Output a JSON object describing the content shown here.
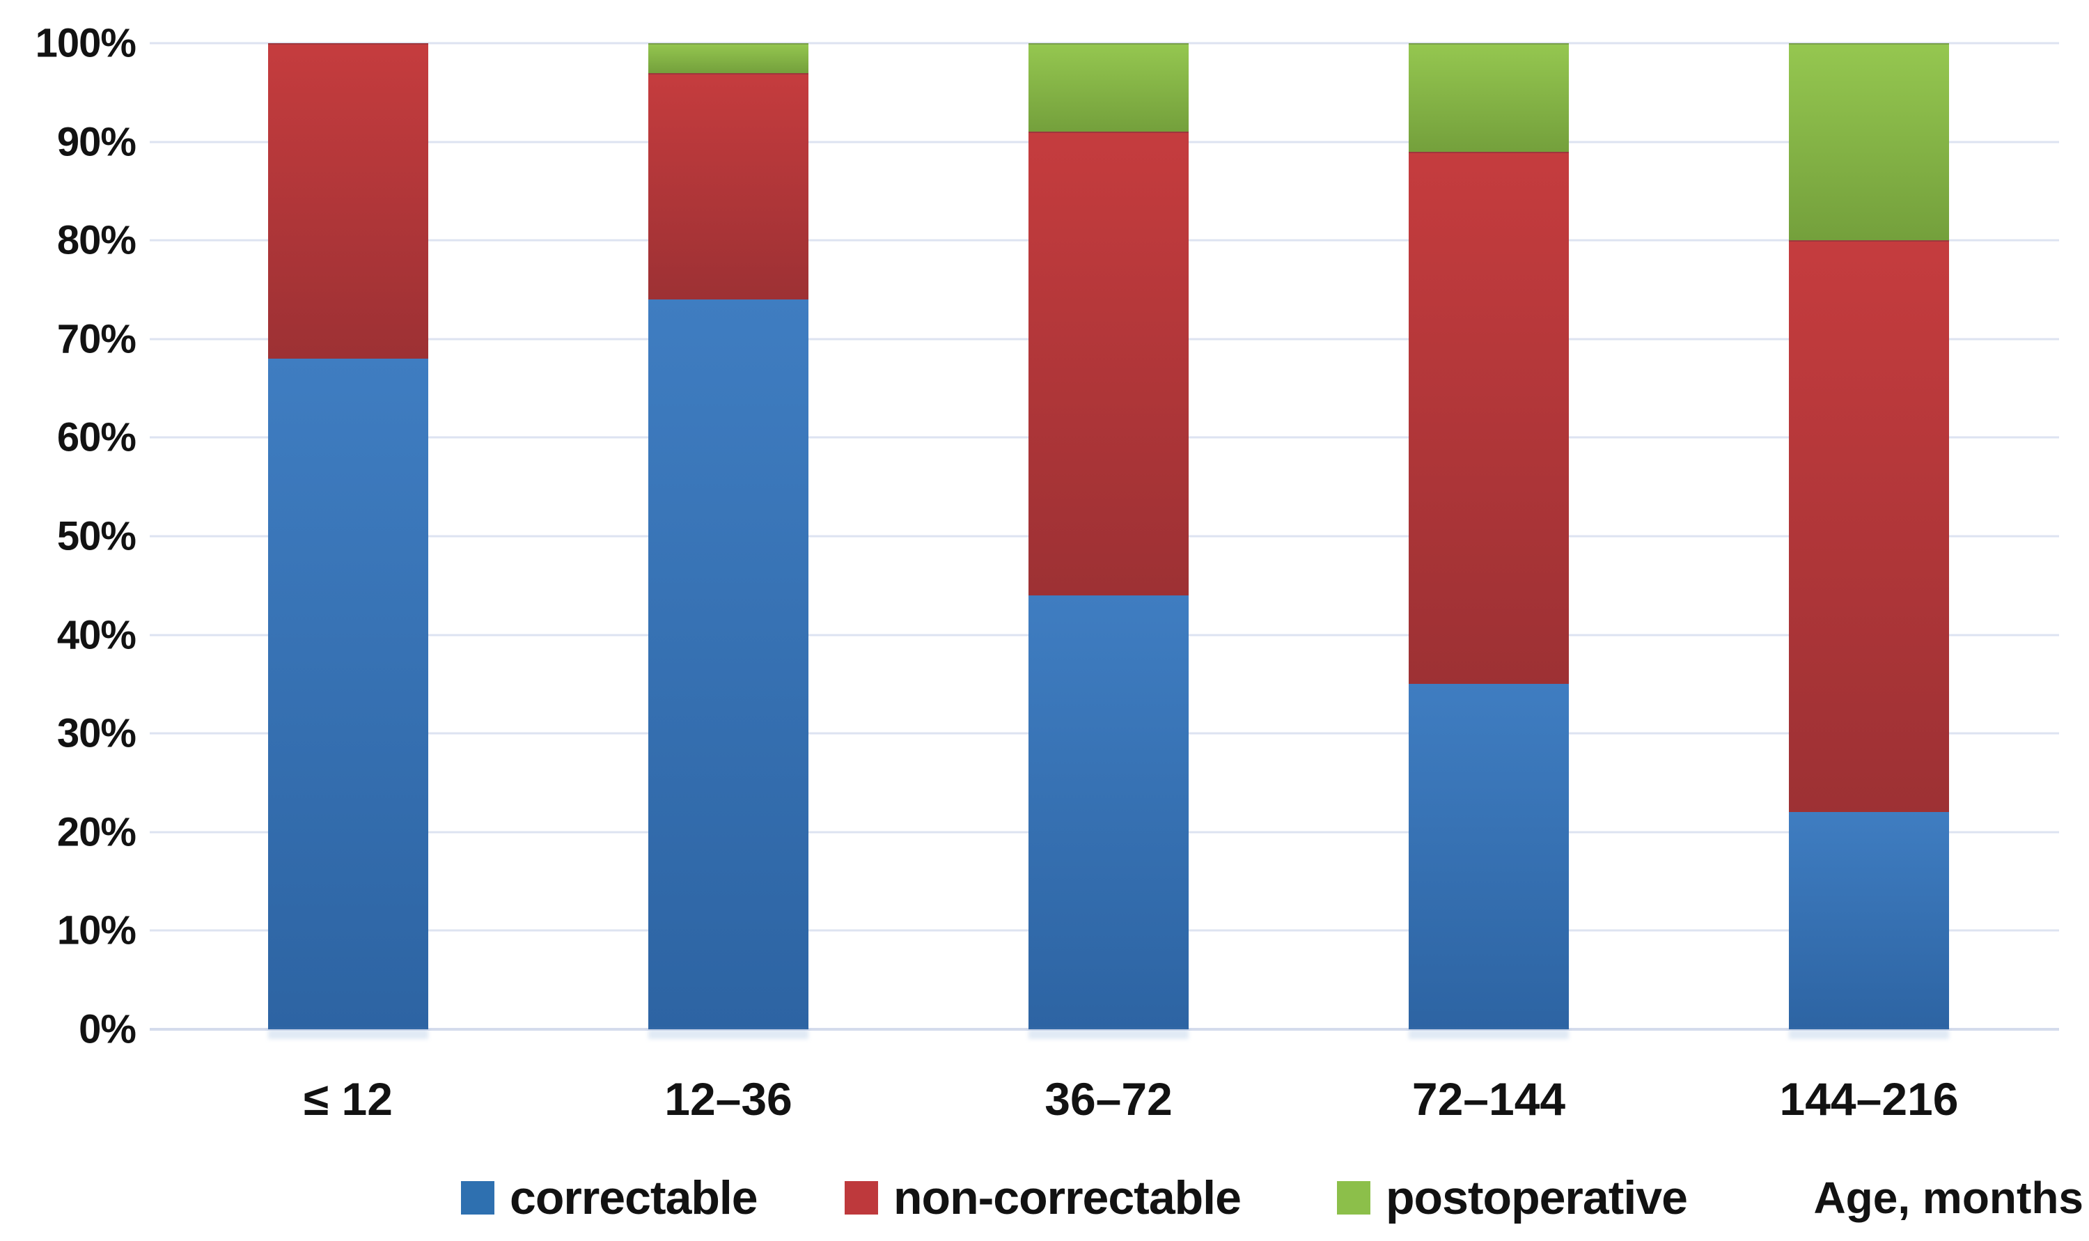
{
  "chart_data": {
    "type": "bar",
    "subtype": "stacked-100",
    "title": "",
    "xlabel": "Age, months",
    "ylabel": "",
    "categories": [
      "≤ 12",
      "12–36",
      "36–72",
      "72–144",
      "144–216"
    ],
    "series": [
      {
        "name": "correctable",
        "values": [
          68,
          74,
          44,
          35,
          22
        ],
        "color": "#2e70b0",
        "gradient_top": "#3f7dc1",
        "gradient_bottom": "#2d64a3"
      },
      {
        "name": "non-correctable",
        "values": [
          32,
          23,
          47,
          54,
          58
        ],
        "color": "#be393c",
        "gradient_top": "#c53c3e",
        "gradient_bottom": "#9d3134"
      },
      {
        "name": "postoperative",
        "values": [
          0,
          3,
          9,
          11,
          20
        ],
        "color": "#8cbf4a",
        "gradient_top": "#95c750",
        "gradient_bottom": "#74a03c"
      }
    ],
    "yticks": [
      0,
      10,
      20,
      30,
      40,
      50,
      60,
      70,
      80,
      90,
      100
    ],
    "ytick_suffix": "%",
    "ylim": [
      0,
      100
    ],
    "grid": true,
    "gridline_color": "#dde3f1",
    "legend_position": "bottom",
    "axis_title_right": "Age, months"
  },
  "legend": {
    "items": [
      "correctable",
      "non-correctable",
      "postoperative"
    ]
  }
}
